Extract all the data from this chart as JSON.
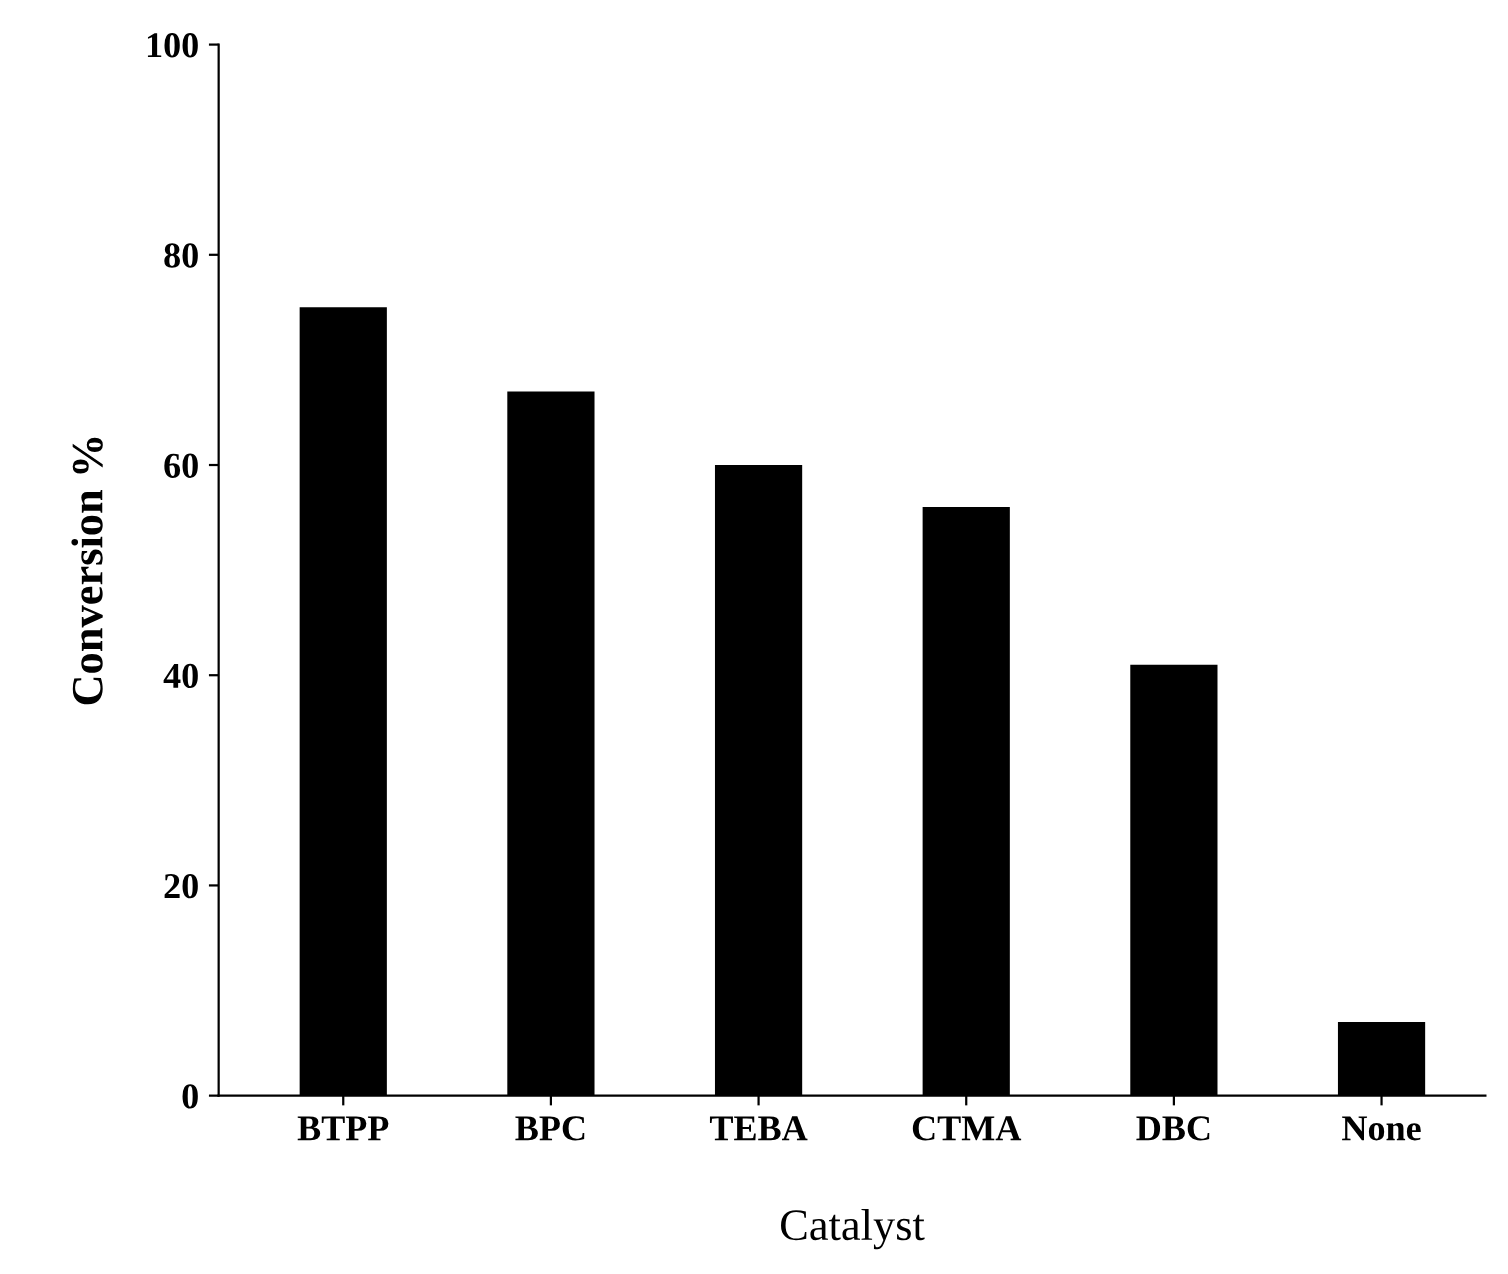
{
  "chart_data": {
    "type": "bar",
    "xlabel": "Catalyst",
    "ylabel": "Conversion %",
    "categories": [
      "BTPP",
      "BPC",
      "TEBA",
      "CTMA",
      "DBC",
      "None"
    ],
    "values": [
      75,
      67,
      60,
      56,
      41,
      7
    ],
    "color": "#000000",
    "ylim": [
      0,
      100
    ],
    "yticks": [
      0,
      20,
      40,
      60,
      80,
      100
    ],
    "grid": false
  }
}
